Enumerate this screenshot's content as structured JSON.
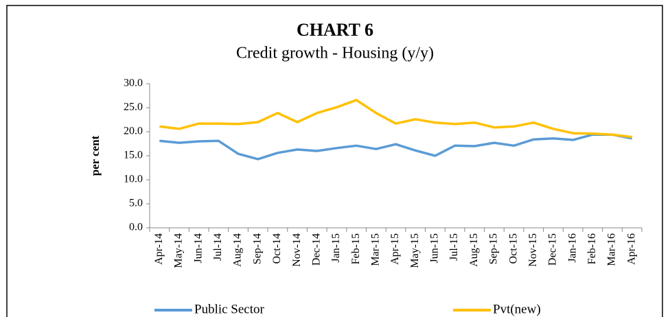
{
  "chart_data": {
    "type": "line",
    "title": "CHART 6",
    "subtitle": "Credit growth - Housing (y/y)",
    "y_label": "per cent",
    "categories": [
      "Apr-14",
      "May-14",
      "Jun-14",
      "Jul-14",
      "Aug-14",
      "Sep-14",
      "Oct-14",
      "Nov-14",
      "Dec-14",
      "Jan-15",
      "Feb-15",
      "Mar-15",
      "Apr-15",
      "May-15",
      "Jun-15",
      "Jul-15",
      "Aug-15",
      "Sep-15",
      "Oct-15",
      "Nov-15",
      "Dec-15",
      "Jan-16",
      "Feb-16",
      "Mar-16",
      "Apr-16"
    ],
    "series": [
      {
        "name": "Public Sector",
        "color": "#5b9bd5",
        "values": [
          18.1,
          17.7,
          18.0,
          18.1,
          15.4,
          14.3,
          15.6,
          16.3,
          16.0,
          16.6,
          17.1,
          16.4,
          17.4,
          16.1,
          15.0,
          17.1,
          17.0,
          17.7,
          17.1,
          18.4,
          18.6,
          18.3,
          19.4,
          19.4,
          18.6
        ]
      },
      {
        "name": "Pvt(new)",
        "color": "#ffc000",
        "values": [
          21.1,
          20.6,
          21.7,
          21.7,
          21.6,
          22.0,
          23.9,
          22.0,
          23.9,
          25.1,
          26.6,
          23.9,
          21.7,
          22.6,
          21.9,
          21.6,
          21.9,
          20.9,
          21.1,
          21.9,
          20.6,
          19.7,
          19.6,
          19.4,
          18.9
        ]
      }
    ],
    "ylim": [
      0,
      30
    ],
    "yticks": [
      {
        "value": 0,
        "label": "0.0"
      },
      {
        "value": 5,
        "label": "5.0"
      },
      {
        "value": 10,
        "label": "10.0"
      },
      {
        "value": 15,
        "label": "15.0"
      },
      {
        "value": 20,
        "label": "20.0"
      },
      {
        "value": 25,
        "label": "25.0"
      },
      {
        "value": 30,
        "label": "30.0"
      }
    ],
    "grid": false,
    "legend": "bottom"
  }
}
